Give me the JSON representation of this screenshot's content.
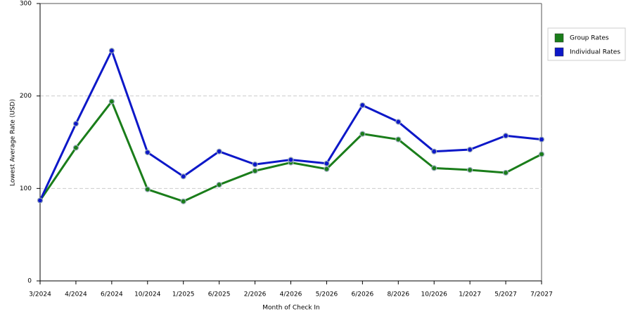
{
  "chart_data": {
    "type": "line",
    "x_label": "Month of Check In",
    "y_label": "Lowest Average Rate (USD)",
    "categories": [
      "3/2024",
      "4/2024",
      "6/2024",
      "10/2024",
      "1/2025",
      "6/2025",
      "2/2026",
      "4/2026",
      "5/2026",
      "6/2026",
      "8/2026",
      "10/2026",
      "1/2027",
      "5/2027",
      "7/2027"
    ],
    "series": [
      {
        "name": "Group Rates",
        "color": "#1a7d1a",
        "values": [
          87,
          144,
          194,
          99,
          86,
          104,
          119,
          128,
          121,
          159,
          153,
          122,
          120,
          117,
          137
        ]
      },
      {
        "name": "Individual Rates",
        "color": "#0d18c8",
        "values": [
          87,
          170,
          249,
          139,
          113,
          140,
          126,
          131,
          127,
          190,
          172,
          140,
          142,
          157,
          153
        ]
      }
    ],
    "ylim": [
      0,
      300
    ],
    "yticks": [
      0,
      100,
      200,
      300
    ],
    "grid": true,
    "legend": "right"
  }
}
